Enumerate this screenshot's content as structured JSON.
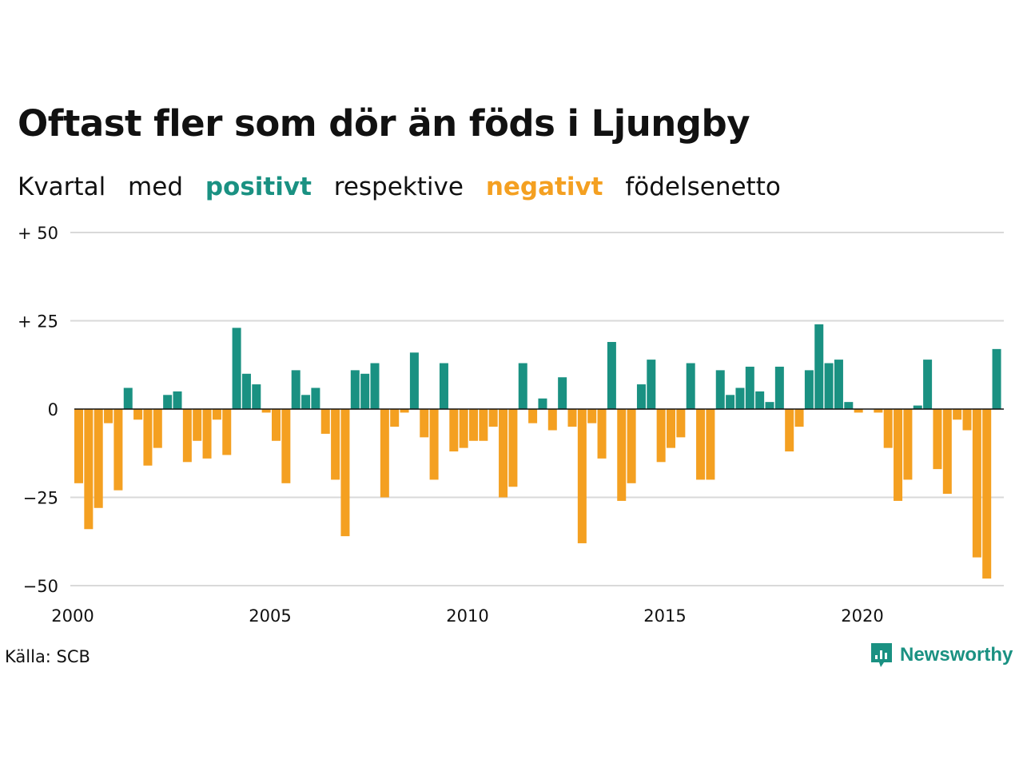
{
  "title": "Oftast fler som dör än föds i Ljungby",
  "subtitle": {
    "parts": [
      "Kvartal",
      "med",
      "positivt",
      "respektive",
      "negativt",
      "födelsenetto"
    ]
  },
  "source": "Källa: SCB",
  "brand": {
    "name": "Newsworthy",
    "icon": "newsworthy-logo-icon"
  },
  "colors": {
    "positive": "#1a9182",
    "negative": "#f4a021",
    "grid": "#d9d9d9",
    "text": "#111111"
  },
  "chart_data": {
    "type": "bar",
    "start_quarter": "2000Q1",
    "x_ticks": [
      "2000",
      "2005",
      "2010",
      "2015",
      "2020"
    ],
    "y_ticks": [
      {
        "value": 50,
        "label": "+ 50"
      },
      {
        "value": 25,
        "label": "+ 25"
      },
      {
        "value": 0,
        "label": "0"
      },
      {
        "value": -25,
        "label": "−25"
      },
      {
        "value": -50,
        "label": "−50"
      }
    ],
    "ylim": [
      -50,
      50
    ],
    "grid": true,
    "values": [
      -21,
      -34,
      -28,
      -4,
      -23,
      6,
      -3,
      -16,
      -11,
      4,
      5,
      -15,
      -9,
      -14,
      -3,
      -13,
      23,
      10,
      7,
      -1,
      -9,
      -21,
      11,
      4,
      6,
      -7,
      -20,
      -36,
      11,
      10,
      13,
      -25,
      -5,
      -1,
      16,
      -8,
      -20,
      13,
      -12,
      -11,
      -9,
      -9,
      -5,
      -25,
      -22,
      13,
      -4,
      3,
      -6,
      9,
      -5,
      -38,
      -4,
      -14,
      19,
      -26,
      -21,
      7,
      14,
      -15,
      -11,
      -8,
      13,
      -20,
      -20,
      11,
      4,
      6,
      12,
      5,
      2,
      12,
      -12,
      -5,
      11,
      24,
      13,
      14,
      2,
      -1,
      0,
      -1,
      -11,
      -26,
      -20,
      1,
      14,
      -17,
      -24,
      -3,
      -6,
      -42,
      -48,
      17
    ]
  }
}
